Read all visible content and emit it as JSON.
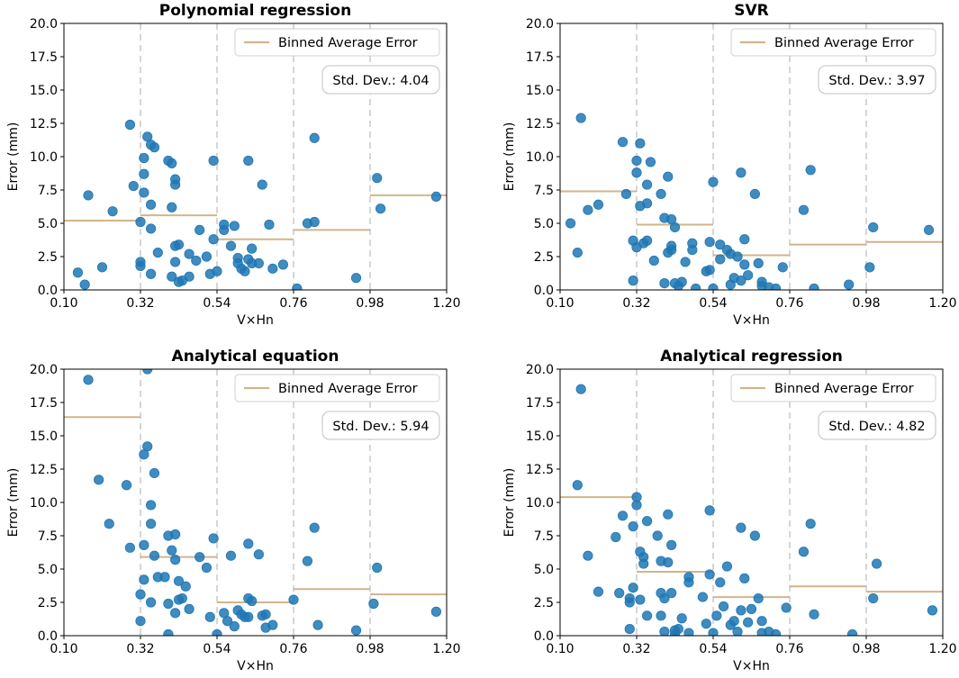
{
  "colors": {
    "point": "#1f77b4",
    "binned_line": "#d2b48c",
    "vline": "#cccccc",
    "axis": "#000000"
  },
  "chart_data": [
    {
      "type": "scatter",
      "title": "Polynomial regression",
      "xlabel": "V×Hn",
      "ylabel": "Error (mm)",
      "xlim": [
        0.1,
        1.2
      ],
      "ylim": [
        0,
        20
      ],
      "xticks": [
        0.1,
        0.32,
        0.54,
        0.76,
        0.98,
        1.2
      ],
      "xtick_labels": [
        "0.10",
        "0.32",
        "0.54",
        "0.76",
        "0.98",
        "1.20"
      ],
      "yticks": [
        0,
        2.5,
        5,
        7.5,
        10,
        12.5,
        15,
        17.5,
        20
      ],
      "ytick_labels": [
        "0.0",
        "2.5",
        "5.0",
        "7.5",
        "10.0",
        "12.5",
        "15.0",
        "17.5",
        "20.0"
      ],
      "legend": "Binned Average Error",
      "std_dev_label": "Std. Dev.: 4.04",
      "bin_edges": [
        0.32,
        0.54,
        0.76,
        0.98
      ],
      "binned_average": [
        5.2,
        5.6,
        3.8,
        4.5,
        7.1
      ],
      "points": [
        [
          0.14,
          1.3
        ],
        [
          0.16,
          0.4
        ],
        [
          0.17,
          7.1
        ],
        [
          0.21,
          1.7
        ],
        [
          0.24,
          5.9
        ],
        [
          0.29,
          12.4
        ],
        [
          0.3,
          7.8
        ],
        [
          0.32,
          5.1
        ],
        [
          0.32,
          2.1
        ],
        [
          0.32,
          1.8
        ],
        [
          0.33,
          9.9
        ],
        [
          0.33,
          8.7
        ],
        [
          0.33,
          7.3
        ],
        [
          0.34,
          11.5
        ],
        [
          0.35,
          10.9
        ],
        [
          0.36,
          10.7
        ],
        [
          0.35,
          6.4
        ],
        [
          0.35,
          4.6
        ],
        [
          0.35,
          1.2
        ],
        [
          0.37,
          2.8
        ],
        [
          0.4,
          9.7
        ],
        [
          0.41,
          9.5
        ],
        [
          0.41,
          6.2
        ],
        [
          0.42,
          8.3
        ],
        [
          0.42,
          7.9
        ],
        [
          0.42,
          3.3
        ],
        [
          0.43,
          3.4
        ],
        [
          0.42,
          2.1
        ],
        [
          0.41,
          1.0
        ],
        [
          0.43,
          0.6
        ],
        [
          0.44,
          0.7
        ],
        [
          0.46,
          2.7
        ],
        [
          0.46,
          1.0
        ],
        [
          0.48,
          2.2
        ],
        [
          0.49,
          4.5
        ],
        [
          0.51,
          2.5
        ],
        [
          0.52,
          1.2
        ],
        [
          0.53,
          3.8
        ],
        [
          0.53,
          9.7
        ],
        [
          0.54,
          1.4
        ],
        [
          0.56,
          4.9
        ],
        [
          0.56,
          4.5
        ],
        [
          0.58,
          3.3
        ],
        [
          0.59,
          4.8
        ],
        [
          0.6,
          2.4
        ],
        [
          0.6,
          2.0
        ],
        [
          0.61,
          1.6
        ],
        [
          0.62,
          1.4
        ],
        [
          0.63,
          2.3
        ],
        [
          0.63,
          9.7
        ],
        [
          0.64,
          3.1
        ],
        [
          0.64,
          2.0
        ],
        [
          0.66,
          2.0
        ],
        [
          0.67,
          7.9
        ],
        [
          0.69,
          4.9
        ],
        [
          0.7,
          1.6
        ],
        [
          0.73,
          1.9
        ],
        [
          0.77,
          0.1
        ],
        [
          0.8,
          5.0
        ],
        [
          0.82,
          5.1
        ],
        [
          0.82,
          11.4
        ],
        [
          0.94,
          0.9
        ],
        [
          1.0,
          8.4
        ],
        [
          1.01,
          6.1
        ],
        [
          1.17,
          7.0
        ]
      ]
    },
    {
      "type": "scatter",
      "title": "SVR",
      "xlabel": "V×Hn",
      "ylabel": "Error (mm)",
      "xlim": [
        0.1,
        1.2
      ],
      "ylim": [
        0,
        20
      ],
      "xticks": [
        0.1,
        0.32,
        0.54,
        0.76,
        0.98,
        1.2
      ],
      "xtick_labels": [
        "0.10",
        "0.32",
        "0.54",
        "0.76",
        "0.98",
        "1.20"
      ],
      "yticks": [
        0,
        2.5,
        5,
        7.5,
        10,
        12.5,
        15,
        17.5,
        20
      ],
      "ytick_labels": [
        "0.0",
        "2.5",
        "5.0",
        "7.5",
        "10.0",
        "12.5",
        "15.0",
        "17.5",
        "20.0"
      ],
      "legend": "Binned Average Error",
      "std_dev_label": "Std. Dev.: 3.97",
      "bin_edges": [
        0.32,
        0.54,
        0.76,
        0.98
      ],
      "binned_average": [
        7.4,
        4.9,
        2.6,
        3.4,
        3.6
      ],
      "points": [
        [
          0.13,
          5.0
        ],
        [
          0.15,
          2.8
        ],
        [
          0.16,
          12.9
        ],
        [
          0.18,
          6.0
        ],
        [
          0.21,
          6.4
        ],
        [
          0.28,
          11.1
        ],
        [
          0.29,
          7.2
        ],
        [
          0.31,
          3.7
        ],
        [
          0.31,
          0.7
        ],
        [
          0.32,
          3.2
        ],
        [
          0.32,
          9.7
        ],
        [
          0.32,
          8.8
        ],
        [
          0.33,
          11.0
        ],
        [
          0.33,
          6.3
        ],
        [
          0.34,
          3.5
        ],
        [
          0.35,
          3.7
        ],
        [
          0.35,
          7.9
        ],
        [
          0.35,
          6.5
        ],
        [
          0.36,
          9.6
        ],
        [
          0.37,
          2.2
        ],
        [
          0.39,
          7.2
        ],
        [
          0.4,
          5.4
        ],
        [
          0.41,
          2.8
        ],
        [
          0.4,
          0.5
        ],
        [
          0.41,
          8.5
        ],
        [
          0.42,
          5.3
        ],
        [
          0.42,
          3.3
        ],
        [
          0.42,
          3.0
        ],
        [
          0.43,
          4.7
        ],
        [
          0.43,
          0.5
        ],
        [
          0.44,
          0.3
        ],
        [
          0.45,
          0.6
        ],
        [
          0.46,
          2.1
        ],
        [
          0.48,
          3.5
        ],
        [
          0.48,
          3.0
        ],
        [
          0.49,
          0.1
        ],
        [
          0.52,
          1.4
        ],
        [
          0.53,
          1.5
        ],
        [
          0.53,
          3.6
        ],
        [
          0.54,
          8.1
        ],
        [
          0.54,
          0.1
        ],
        [
          0.56,
          2.3
        ],
        [
          0.56,
          3.4
        ],
        [
          0.58,
          3.0
        ],
        [
          0.59,
          2.7
        ],
        [
          0.59,
          0.4
        ],
        [
          0.6,
          0.9
        ],
        [
          0.61,
          2.5
        ],
        [
          0.62,
          8.8
        ],
        [
          0.62,
          0.7
        ],
        [
          0.63,
          1.9
        ],
        [
          0.63,
          3.8
        ],
        [
          0.64,
          1.1
        ],
        [
          0.66,
          7.2
        ],
        [
          0.67,
          2.0
        ],
        [
          0.68,
          0.6
        ],
        [
          0.68,
          0.3
        ],
        [
          0.7,
          0.2
        ],
        [
          0.72,
          0.1
        ],
        [
          0.74,
          1.7
        ],
        [
          0.8,
          6.0
        ],
        [
          0.82,
          9.0
        ],
        [
          0.83,
          0.1
        ],
        [
          0.93,
          0.4
        ],
        [
          0.99,
          1.7
        ],
        [
          1.0,
          4.7
        ],
        [
          1.16,
          4.5
        ]
      ]
    },
    {
      "type": "scatter",
      "title": "Analytical equation",
      "xlabel": "V×Hn",
      "ylabel": "Error (mm)",
      "xlim": [
        0.1,
        1.2
      ],
      "ylim": [
        0,
        20
      ],
      "xticks": [
        0.1,
        0.32,
        0.54,
        0.76,
        0.98,
        1.2
      ],
      "xtick_labels": [
        "0.10",
        "0.32",
        "0.54",
        "0.76",
        "0.98",
        "1.20"
      ],
      "yticks": [
        0,
        2.5,
        5,
        7.5,
        10,
        12.5,
        15,
        17.5,
        20
      ],
      "ytick_labels": [
        "0.0",
        "2.5",
        "5.0",
        "7.5",
        "10.0",
        "12.5",
        "15.0",
        "17.5",
        "20.0"
      ],
      "legend": "Binned Average Error",
      "std_dev_label": "Std. Dev.: 5.94",
      "bin_edges": [
        0.32,
        0.54,
        0.76,
        0.98
      ],
      "binned_average": [
        16.4,
        5.9,
        2.5,
        3.5,
        3.1
      ],
      "points": [
        [
          0.17,
          19.2
        ],
        [
          0.2,
          11.7
        ],
        [
          0.23,
          8.4
        ],
        [
          0.28,
          11.3
        ],
        [
          0.29,
          6.6
        ],
        [
          0.32,
          3.1
        ],
        [
          0.32,
          1.1
        ],
        [
          0.33,
          13.6
        ],
        [
          0.33,
          6.8
        ],
        [
          0.33,
          4.2
        ],
        [
          0.34,
          14.2
        ],
        [
          0.34,
          20.0
        ],
        [
          0.35,
          9.8
        ],
        [
          0.35,
          8.4
        ],
        [
          0.36,
          6.0
        ],
        [
          0.35,
          2.5
        ],
        [
          0.36,
          12.2
        ],
        [
          0.37,
          4.4
        ],
        [
          0.39,
          4.4
        ],
        [
          0.4,
          7.5
        ],
        [
          0.4,
          2.4
        ],
        [
          0.41,
          6.4
        ],
        [
          0.42,
          7.6
        ],
        [
          0.42,
          5.7
        ],
        [
          0.42,
          1.7
        ],
        [
          0.43,
          4.1
        ],
        [
          0.43,
          2.7
        ],
        [
          0.44,
          2.8
        ],
        [
          0.4,
          0.1
        ],
        [
          0.45,
          3.7
        ],
        [
          0.46,
          2.0
        ],
        [
          0.49,
          5.9
        ],
        [
          0.51,
          5.1
        ],
        [
          0.52,
          1.4
        ],
        [
          0.53,
          7.3
        ],
        [
          0.54,
          0.1
        ],
        [
          0.56,
          1.7
        ],
        [
          0.57,
          1.1
        ],
        [
          0.58,
          6.0
        ],
        [
          0.59,
          0.7
        ],
        [
          0.6,
          1.9
        ],
        [
          0.61,
          1.6
        ],
        [
          0.62,
          1.4
        ],
        [
          0.63,
          1.4
        ],
        [
          0.63,
          6.9
        ],
        [
          0.63,
          2.8
        ],
        [
          0.64,
          2.6
        ],
        [
          0.66,
          6.1
        ],
        [
          0.67,
          1.5
        ],
        [
          0.68,
          1.6
        ],
        [
          0.68,
          0.6
        ],
        [
          0.7,
          0.8
        ],
        [
          0.76,
          2.7
        ],
        [
          0.8,
          5.6
        ],
        [
          0.82,
          8.1
        ],
        [
          0.83,
          0.8
        ],
        [
          0.94,
          0.4
        ],
        [
          0.99,
          2.4
        ],
        [
          1.0,
          5.1
        ],
        [
          1.17,
          1.8
        ]
      ]
    },
    {
      "type": "scatter",
      "title": "Analytical regression",
      "xlabel": "V×Hn",
      "ylabel": "Error (mm)",
      "xlim": [
        0.1,
        1.2
      ],
      "ylim": [
        0,
        20
      ],
      "xticks": [
        0.1,
        0.32,
        0.54,
        0.76,
        0.98,
        1.2
      ],
      "xtick_labels": [
        "0.10",
        "0.32",
        "0.54",
        "0.76",
        "0.98",
        "1.20"
      ],
      "yticks": [
        0,
        2.5,
        5,
        7.5,
        10,
        12.5,
        15,
        17.5,
        20
      ],
      "ytick_labels": [
        "0.0",
        "2.5",
        "5.0",
        "7.5",
        "10.0",
        "12.5",
        "15.0",
        "17.5",
        "20.0"
      ],
      "legend": "Binned Average Error",
      "std_dev_label": "Std. Dev.: 4.82",
      "bin_edges": [
        0.32,
        0.54,
        0.76,
        0.98
      ],
      "binned_average": [
        10.4,
        4.8,
        2.9,
        3.7,
        3.3
      ],
      "points": [
        [
          0.15,
          11.3
        ],
        [
          0.16,
          18.5
        ],
        [
          0.18,
          6.0
        ],
        [
          0.21,
          3.3
        ],
        [
          0.26,
          7.4
        ],
        [
          0.27,
          3.2
        ],
        [
          0.28,
          9.0
        ],
        [
          0.3,
          0.5
        ],
        [
          0.3,
          2.8
        ],
        [
          0.3,
          2.5
        ],
        [
          0.31,
          3.6
        ],
        [
          0.31,
          8.2
        ],
        [
          0.32,
          9.8
        ],
        [
          0.32,
          10.4
        ],
        [
          0.33,
          2.7
        ],
        [
          0.33,
          6.3
        ],
        [
          0.34,
          5.9
        ],
        [
          0.34,
          5.4
        ],
        [
          0.35,
          8.6
        ],
        [
          0.35,
          1.5
        ],
        [
          0.38,
          7.5
        ],
        [
          0.39,
          5.6
        ],
        [
          0.39,
          3.2
        ],
        [
          0.39,
          1.5
        ],
        [
          0.4,
          2.8
        ],
        [
          0.4,
          0.3
        ],
        [
          0.41,
          9.1
        ],
        [
          0.41,
          5.5
        ],
        [
          0.42,
          6.8
        ],
        [
          0.42,
          3.2
        ],
        [
          0.43,
          0.4
        ],
        [
          0.43,
          0.1
        ],
        [
          0.44,
          0.5
        ],
        [
          0.45,
          1.3
        ],
        [
          0.47,
          0.2
        ],
        [
          0.47,
          4.4
        ],
        [
          0.47,
          4.0
        ],
        [
          0.51,
          2.9
        ],
        [
          0.52,
          0.9
        ],
        [
          0.53,
          4.6
        ],
        [
          0.53,
          9.4
        ],
        [
          0.54,
          0.2
        ],
        [
          0.55,
          1.5
        ],
        [
          0.56,
          4.0
        ],
        [
          0.57,
          2.2
        ],
        [
          0.58,
          5.2
        ],
        [
          0.59,
          0.8
        ],
        [
          0.6,
          1.1
        ],
        [
          0.61,
          0.3
        ],
        [
          0.62,
          8.1
        ],
        [
          0.62,
          1.9
        ],
        [
          0.63,
          4.3
        ],
        [
          0.64,
          1.0
        ],
        [
          0.65,
          2.0
        ],
        [
          0.66,
          7.5
        ],
        [
          0.67,
          2.8
        ],
        [
          0.68,
          1.1
        ],
        [
          0.68,
          0.2
        ],
        [
          0.7,
          0.3
        ],
        [
          0.72,
          0.1
        ],
        [
          0.75,
          2.1
        ],
        [
          0.8,
          6.3
        ],
        [
          0.82,
          8.4
        ],
        [
          0.83,
          1.6
        ],
        [
          0.94,
          0.1
        ],
        [
          1.0,
          2.8
        ],
        [
          1.01,
          5.4
        ],
        [
          1.17,
          1.9
        ]
      ]
    }
  ]
}
